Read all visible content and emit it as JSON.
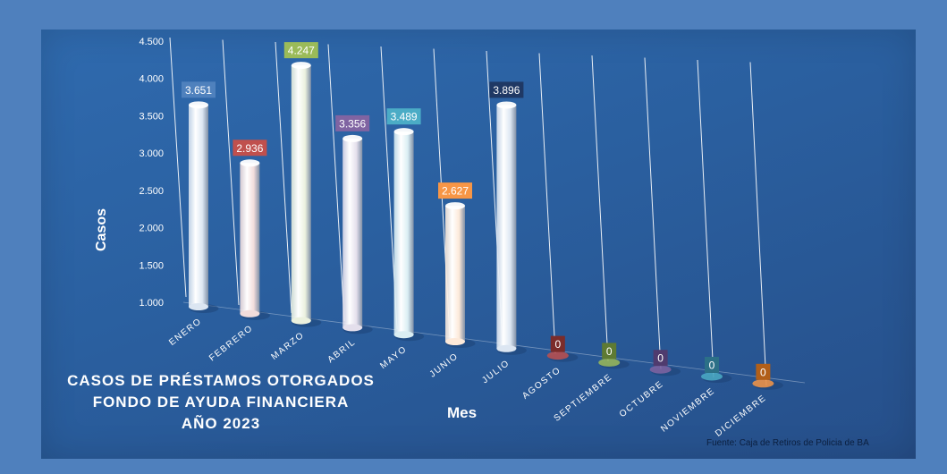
{
  "chart_data": {
    "type": "bar",
    "title": [
      "CASOS DE PRÉSTAMOS OTORGADOS",
      "FONDO DE AYUDA FINANCIERA",
      "AÑO 2023"
    ],
    "xlabel": "Mes",
    "ylabel": "Casos",
    "source": "Fuente: Caja de Retiros de Policia de BA",
    "categories": [
      "ENERO",
      "FEBRERO",
      "MARZO",
      "ABRIL",
      "MAYO",
      "JUNIO",
      "JULIO",
      "AGOSTO",
      "SEPTIEMBRE",
      "OCTUBRE",
      "NOVIEMBRE",
      "DICIEMBRE"
    ],
    "values": [
      3651,
      2936,
      4247,
      3356,
      3489,
      2627,
      3896,
      0,
      0,
      0,
      0,
      0
    ],
    "value_labels": [
      "3.651",
      "2.936",
      "4.247",
      "3.356",
      "3.489",
      "2.627",
      "3.896",
      "0",
      "0",
      "0",
      "0",
      "0"
    ],
    "y_ticks": [
      "1.000",
      "1.500",
      "2.000",
      "2.500",
      "3.000",
      "3.500",
      "4.000",
      "4.500"
    ],
    "ylim": [
      1000,
      4500
    ],
    "bar_colors": [
      "#dce6f2",
      "#f2dcdb",
      "#ebf1de",
      "#e4dfec",
      "#daeef3",
      "#fde9d9",
      "#dce6f2",
      "#c0504d",
      "#9bbb59",
      "#8064a2",
      "#4bacc6",
      "#f79646"
    ],
    "label_colors": [
      "#4f81bd",
      "#c0504d",
      "#9bbb59",
      "#8064a2",
      "#4bacc6",
      "#f79646",
      "#1f3864",
      "#7b2c2a",
      "#5e7a33",
      "#4f3b6e",
      "#2c7087",
      "#b15f19"
    ]
  }
}
